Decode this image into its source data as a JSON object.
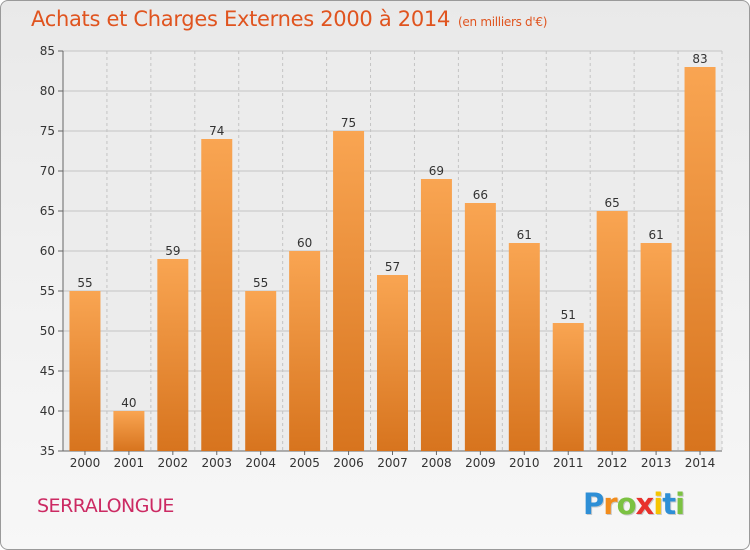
{
  "chart_data": {
    "type": "bar",
    "title": "Achats et Charges Externes 2000 à 2014",
    "subtitle": "(en milliers d'€)",
    "categories": [
      "2000",
      "2001",
      "2002",
      "2003",
      "2004",
      "2005",
      "2006",
      "2007",
      "2008",
      "2009",
      "2010",
      "2011",
      "2012",
      "2013",
      "2014"
    ],
    "values": [
      55,
      40,
      59,
      74,
      55,
      60,
      75,
      57,
      69,
      66,
      61,
      51,
      65,
      61,
      83
    ],
    "ylim": [
      35,
      85
    ],
    "yticks": [
      35,
      40,
      45,
      50,
      55,
      60,
      65,
      70,
      75,
      80,
      85
    ],
    "grid": true,
    "bar_color_top": "#f9a552",
    "bar_color_bottom": "#d7741e"
  },
  "footer": {
    "commune": "SERRALONGUE",
    "logo_letters": [
      {
        "char": "P",
        "color": "#2e8fd6"
      },
      {
        "char": "r",
        "color": "#f28c1c"
      },
      {
        "char": "o",
        "color": "#7cc242"
      },
      {
        "char": "x",
        "color": "#e8312c"
      },
      {
        "char": "i",
        "color": "#f5c400"
      },
      {
        "char": "t",
        "color": "#2e8fd6"
      },
      {
        "char": "i",
        "color": "#7cc242"
      }
    ]
  }
}
